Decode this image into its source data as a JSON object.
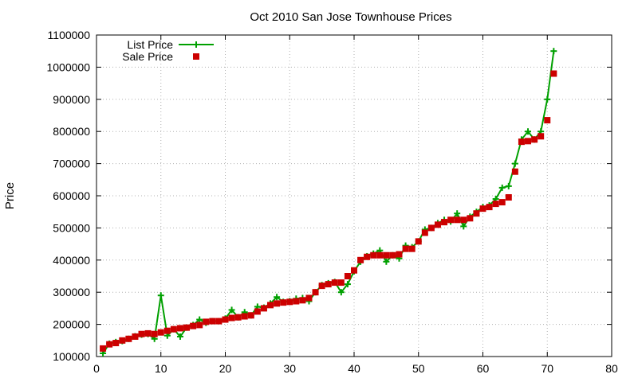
{
  "chart_data": {
    "type": "line",
    "title": "Oct 2010 San Jose Townhouse Prices",
    "xlabel": "",
    "ylabel": "Price",
    "xlim": [
      0,
      80
    ],
    "ylim": [
      100000,
      1100000
    ],
    "x_ticks": [
      0,
      10,
      20,
      30,
      40,
      50,
      60,
      70,
      80
    ],
    "y_ticks": [
      100000,
      200000,
      300000,
      400000,
      500000,
      600000,
      700000,
      800000,
      900000,
      1000000,
      1100000
    ],
    "grid": true,
    "legend_position": "top-left",
    "x": [
      1,
      2,
      3,
      4,
      5,
      6,
      7,
      8,
      9,
      10,
      11,
      12,
      13,
      14,
      15,
      16,
      17,
      18,
      19,
      20,
      21,
      22,
      23,
      24,
      25,
      26,
      27,
      28,
      29,
      30,
      31,
      32,
      33,
      34,
      35,
      36,
      37,
      38,
      39,
      40,
      41,
      42,
      43,
      44,
      45,
      46,
      47,
      48,
      49,
      50,
      51,
      52,
      53,
      54,
      55,
      56,
      57,
      58,
      59,
      60,
      61,
      62,
      63,
      64,
      65,
      66,
      67,
      68,
      69,
      70,
      71
    ],
    "series": [
      {
        "name": "List Price",
        "color": "#00a000",
        "marker": "plus",
        "line": true,
        "values": [
          110000,
          140000,
          145000,
          148000,
          155000,
          163000,
          168000,
          170000,
          155000,
          290000,
          165000,
          185000,
          162000,
          190000,
          198000,
          215000,
          205000,
          210000,
          210000,
          218000,
          245000,
          222000,
          238000,
          228000,
          255000,
          252000,
          265000,
          285000,
          270000,
          272000,
          280000,
          282000,
          272000,
          300000,
          322000,
          328000,
          332000,
          300000,
          325000,
          365000,
          395000,
          412000,
          420000,
          430000,
          395000,
          415000,
          405000,
          445000,
          440000,
          458000,
          495000,
          500000,
          515000,
          525000,
          520000,
          545000,
          505000,
          535000,
          550000,
          565000,
          570000,
          590000,
          625000,
          630000,
          700000,
          775000,
          800000,
          775000,
          800000,
          900000,
          1050000
        ]
      },
      {
        "name": "Sale Price",
        "color": "#cc0000",
        "marker": "square",
        "line": false,
        "values": [
          125000,
          138000,
          142000,
          150000,
          155000,
          162000,
          170000,
          172000,
          170000,
          175000,
          180000,
          185000,
          188000,
          190000,
          195000,
          198000,
          208000,
          210000,
          210000,
          215000,
          220000,
          222000,
          225000,
          228000,
          240000,
          250000,
          260000,
          265000,
          268000,
          270000,
          272000,
          275000,
          282000,
          300000,
          320000,
          325000,
          330000,
          330000,
          350000,
          368000,
          400000,
          410000,
          415000,
          415000,
          415000,
          415000,
          418000,
          435000,
          435000,
          458000,
          485000,
          500000,
          510000,
          518000,
          525000,
          525000,
          525000,
          530000,
          545000,
          560000,
          565000,
          575000,
          580000,
          595000,
          675000,
          768000,
          770000,
          775000,
          785000,
          835000,
          980000
        ]
      }
    ]
  }
}
